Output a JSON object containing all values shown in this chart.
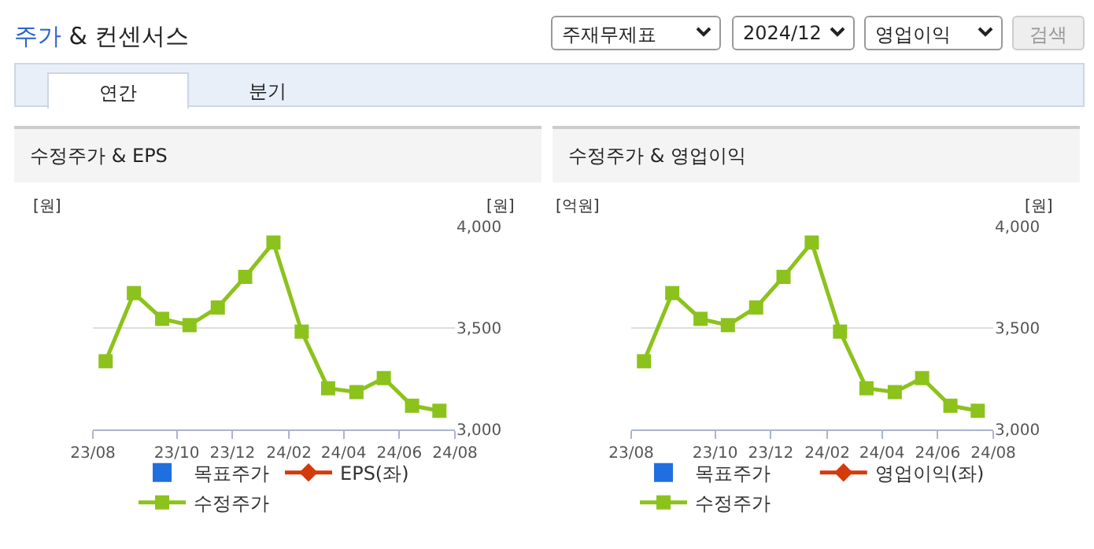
{
  "chart_data": [
    {
      "type": "other",
      "title": "주가 & 컨센서스",
      "annotations": [
        "주재무제표",
        "2024/12",
        "영업이익",
        "검색",
        "연간",
        "분기"
      ]
    },
    {
      "type": "line",
      "title": "수정주가 & EPS",
      "ylabel": "[원]",
      "y2label": "[원]",
      "x": [
        "2023-07-15",
        "2023-08-15",
        "2023-09-15",
        "2023-10-15",
        "2023-11-15",
        "2023-12-15",
        "2024-01-15",
        "2024-02-15",
        "2024-03-15",
        "2024-04-15",
        "2024-05-15",
        "2024-06-15",
        "2024-07-15"
      ],
      "xlim": [
        "2023-07-01",
        "2024-08-01"
      ],
      "xticks": [
        {
          "value": "2023-07-01",
          "label": "23/08"
        },
        {
          "value": "2023-10-01",
          "label": "23/10"
        },
        {
          "value": "2023-12-01",
          "label": "23/12"
        },
        {
          "value": "2024-02-01",
          "label": "24/02"
        },
        {
          "value": "2024-04-01",
          "label": "24/04"
        },
        {
          "value": "2024-06-01",
          "label": "24/06"
        },
        {
          "value": "2024-08-01",
          "label": "24/08"
        }
      ],
      "y2lim": [
        3000,
        4000
      ],
      "y2ticks": [
        {
          "value": 3000,
          "label": "3,000"
        },
        {
          "value": 3500,
          "label": "3,500"
        },
        {
          "value": 4000,
          "label": "4,000"
        }
      ],
      "grid": "y",
      "legend": "bottom",
      "tick_labels": "x",
      "series": [
        {
          "name": "목표주가",
          "type": "bar",
          "color": "#1f6fe0",
          "values": [
            null,
            null,
            null,
            null,
            null,
            null,
            null,
            null,
            null,
            null,
            null,
            null,
            null
          ]
        },
        {
          "name": "EPS(좌)",
          "type": "line",
          "color": "#d43a0a",
          "marker": "diamond",
          "values": [
            null,
            null,
            null,
            null,
            null,
            null,
            null,
            null,
            null,
            null,
            null,
            null,
            null
          ]
        },
        {
          "name": "수정주가",
          "type": "line",
          "axis": "y2",
          "color": "#8cc21c",
          "marker": "square",
          "line_style": "solid",
          "values": [
            3336,
            3672,
            3545,
            3514,
            3601,
            3752,
            3921,
            3482,
            3203,
            3184,
            3253,
            3117,
            3092
          ]
        }
      ]
    },
    {
      "type": "line",
      "title": "수정주가 & 영업이익",
      "ylabel": "[억원]",
      "y2label": "[원]",
      "x": [
        "2023-07-15",
        "2023-08-15",
        "2023-09-15",
        "2023-10-15",
        "2023-11-15",
        "2023-12-15",
        "2024-01-15",
        "2024-02-15",
        "2024-03-15",
        "2024-04-15",
        "2024-05-15",
        "2024-06-15",
        "2024-07-15"
      ],
      "xlim": [
        "2023-07-01",
        "2024-08-01"
      ],
      "xticks": [
        {
          "value": "2023-07-01",
          "label": "23/08"
        },
        {
          "value": "2023-10-01",
          "label": "23/10"
        },
        {
          "value": "2023-12-01",
          "label": "23/12"
        },
        {
          "value": "2024-02-01",
          "label": "24/02"
        },
        {
          "value": "2024-04-01",
          "label": "24/04"
        },
        {
          "value": "2024-06-01",
          "label": "24/06"
        },
        {
          "value": "2024-08-01",
          "label": "24/08"
        }
      ],
      "y2lim": [
        3000,
        4000
      ],
      "y2ticks": [
        {
          "value": 3000,
          "label": "3,000"
        },
        {
          "value": 3500,
          "label": "3,500"
        },
        {
          "value": 4000,
          "label": "4,000"
        }
      ],
      "grid": "y",
      "legend": "bottom",
      "tick_labels": "x",
      "series": [
        {
          "name": "목표주가",
          "type": "bar",
          "color": "#1f6fe0",
          "values": [
            null,
            null,
            null,
            null,
            null,
            null,
            null,
            null,
            null,
            null,
            null,
            null,
            null
          ]
        },
        {
          "name": "영업이익(좌)",
          "type": "line",
          "color": "#d43a0a",
          "marker": "diamond",
          "values": [
            null,
            null,
            null,
            null,
            null,
            null,
            null,
            null,
            null,
            null,
            null,
            null,
            null
          ]
        },
        {
          "name": "수정주가",
          "type": "line",
          "axis": "y2",
          "color": "#8cc21c",
          "marker": "square",
          "line_style": "solid",
          "values": [
            3336,
            3672,
            3545,
            3514,
            3601,
            3752,
            3921,
            3482,
            3203,
            3184,
            3253,
            3117,
            3092
          ]
        }
      ]
    }
  ]
}
